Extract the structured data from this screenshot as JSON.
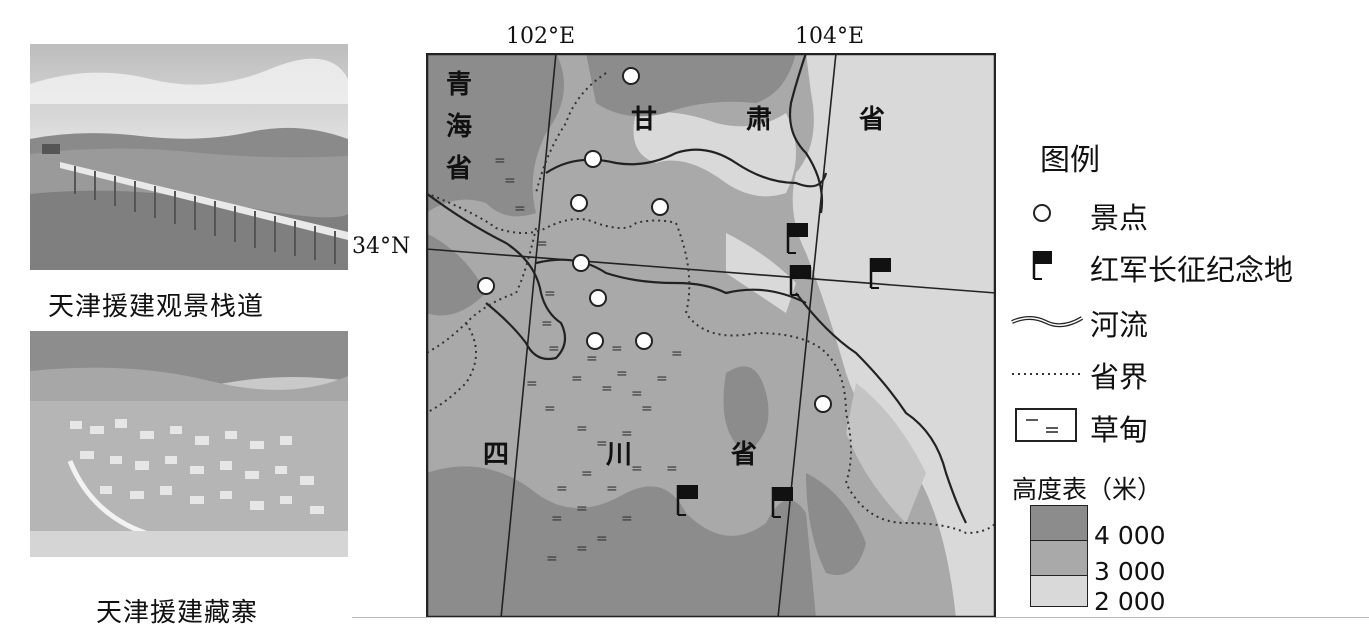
{
  "photos": [
    {
      "caption": "天津援建观景栈道"
    },
    {
      "caption": "天津援建藏寨"
    }
  ],
  "map": {
    "longitude_labels": [
      "102°E",
      "104°E"
    ],
    "latitude_label": "34°N",
    "province_labels": {
      "qinghai": [
        "青",
        "海",
        "省"
      ],
      "gansu": [
        "甘",
        "肃",
        "省"
      ],
      "sichuan": [
        "四",
        "川",
        "省"
      ]
    },
    "colors": {
      "high": "#8c8c8c",
      "mid": "#a9a9a9",
      "low": "#d9d9d9",
      "line": "#222222"
    }
  },
  "legend": {
    "title": "图例",
    "items": [
      {
        "symbol": "scenic-spot-icon",
        "label": "景点"
      },
      {
        "symbol": "red-army-flag-icon",
        "label": "红军长征纪念地"
      },
      {
        "symbol": "river-icon",
        "label": "河流"
      },
      {
        "symbol": "province-boundary-icon",
        "label": "省界"
      },
      {
        "symbol": "grassland-icon",
        "label": "草甸"
      }
    ],
    "elevation": {
      "title": "高度表（米）",
      "levels": [
        "4 000",
        "3 000",
        "2 000"
      ]
    }
  }
}
